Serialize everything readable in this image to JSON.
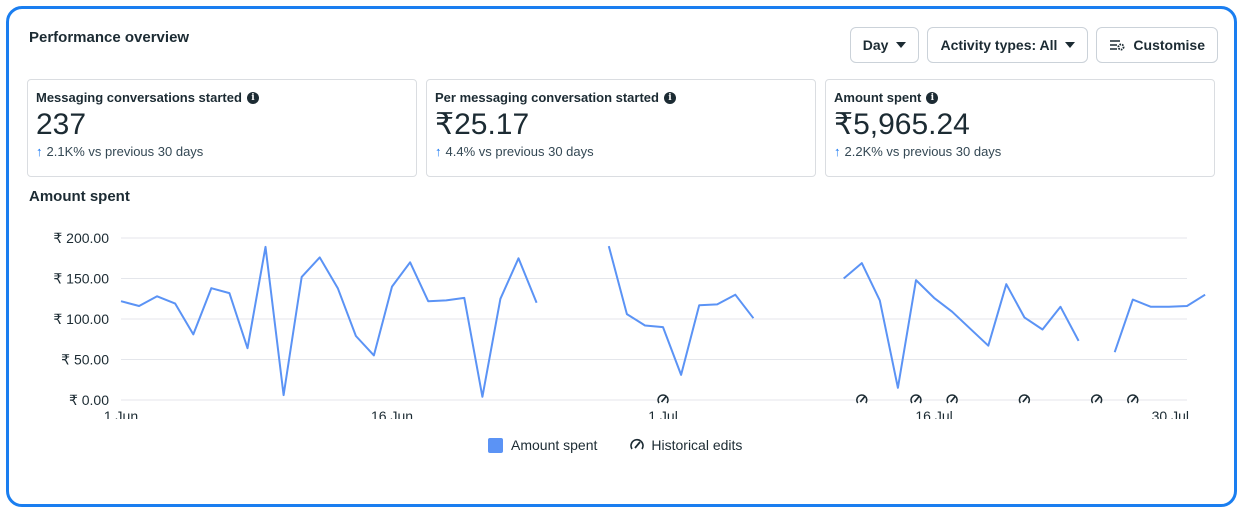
{
  "panel": {
    "title": "Performance overview"
  },
  "toolbar": {
    "day_label": "Day",
    "activity_label": "Activity types: All",
    "customise_label": "Customise"
  },
  "cards": [
    {
      "label": "Messaging conversations started",
      "value": "237",
      "delta": "2.1K% vs previous 30 days"
    },
    {
      "label": "Per messaging conversation started",
      "value": "₹25.17",
      "delta": "4.4% vs previous 30 days"
    },
    {
      "label": "Amount spent",
      "value": "₹5,965.24",
      "delta": "2.2K% vs previous 30 days"
    }
  ],
  "colors": {
    "accent": "#1877f2",
    "line": "#5b93f5",
    "frame": "#1a7ef0"
  },
  "icons": {
    "info": "info-icon",
    "arrow": "arrow-up-icon",
    "customise": "sliders-gear-icon",
    "edit": "historical-edit-icon"
  },
  "chart_data": {
    "type": "line",
    "title": "Amount spent",
    "ylim": [
      0,
      200
    ],
    "y_ticks": [
      {
        "value": 0,
        "label": "₹ 0.00"
      },
      {
        "value": 50,
        "label": "₹ 50.00"
      },
      {
        "value": 100,
        "label": "₹ 100.00"
      },
      {
        "value": 150,
        "label": "₹ 150.00"
      },
      {
        "value": 200,
        "label": "₹ 200.00"
      }
    ],
    "x_ticks": [
      {
        "day": 1,
        "label": "1 Jun"
      },
      {
        "day": 16,
        "label": "16 Jun"
      },
      {
        "day": 31,
        "label": "1 Jul"
      },
      {
        "day": 46,
        "label": "16 Jul"
      },
      {
        "day": 60,
        "label": "30 Jul"
      }
    ],
    "series": [
      {
        "name": "Amount spent",
        "segments": [
          {
            "start_day": 1,
            "values": [
              122,
              116,
              128,
              119,
              81,
              138,
              132,
              64,
              189,
              6,
              152,
              176,
              138,
              79,
              55,
              140,
              170,
              122,
              123,
              126,
              4,
              125,
              175,
              120
            ]
          },
          {
            "start_day": 28,
            "values": [
              190,
              106,
              92,
              90,
              31,
              117,
              118,
              130,
              101
            ]
          },
          {
            "start_day": 41,
            "values": [
              150,
              169,
              123,
              15,
              148,
              126,
              109,
              88,
              67,
              143,
              102,
              87,
              115,
              73
            ]
          },
          {
            "start_day": 56,
            "values": [
              59,
              124,
              115,
              115,
              116,
              130
            ]
          }
        ]
      }
    ],
    "historical_edit_days": [
      31,
      42,
      45,
      47,
      51,
      55,
      57
    ],
    "legend": [
      {
        "label": "Amount spent"
      },
      {
        "label": "Historical edits"
      }
    ]
  }
}
